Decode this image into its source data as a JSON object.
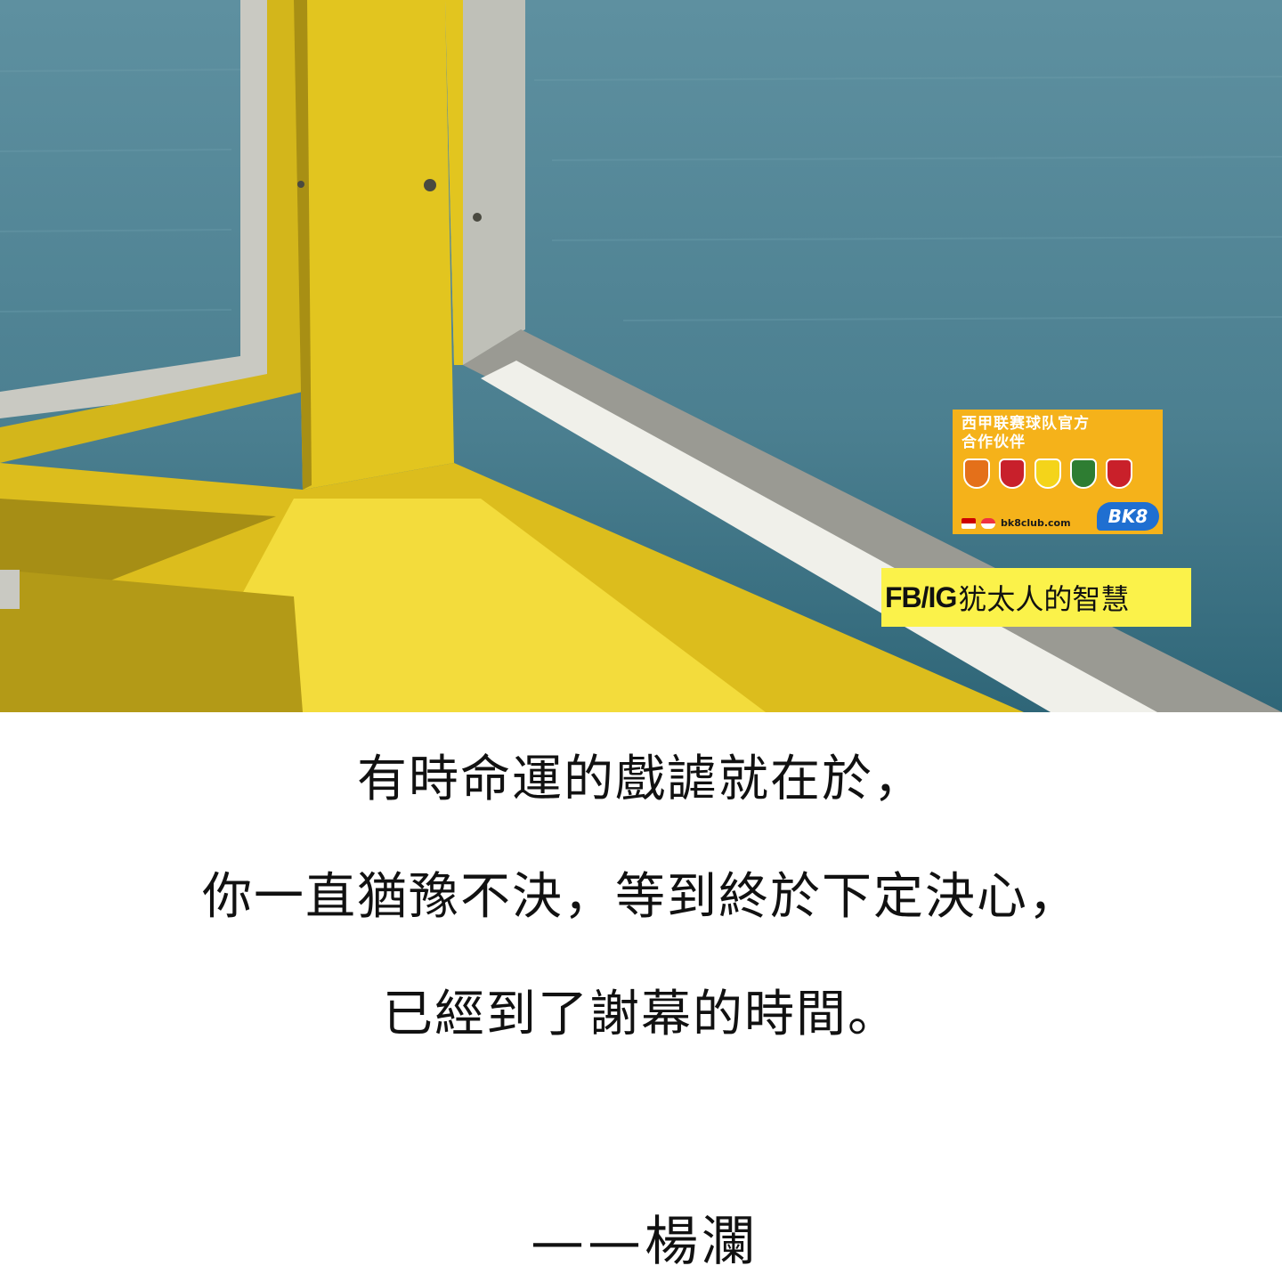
{
  "photo": {
    "subject": "yellow-window-frame-over-sea",
    "colors": {
      "sea": "#4f8393",
      "frame_yellow": "#e2c51f",
      "frame_shadow": "#8f7a12",
      "frame_light": "#f3dc3c",
      "metal": "#c9c9c2"
    }
  },
  "ad_badge": {
    "title_line1": "西甲联赛球队官方",
    "title_line2": "合作伙伴",
    "domain": "bk8club.com",
    "logo": "BK8",
    "background": "#f5b21a"
  },
  "credit": {
    "handle": "FB/IG",
    "name": "犹太人的智慧",
    "background": "#fbf24a"
  },
  "quote": {
    "line1": "有時命運的戲謔就在於，",
    "line2": "你一直猶豫不決，等到終於下定決心，",
    "line3": "已經到了謝幕的時間。",
    "author": "——楊瀾"
  }
}
